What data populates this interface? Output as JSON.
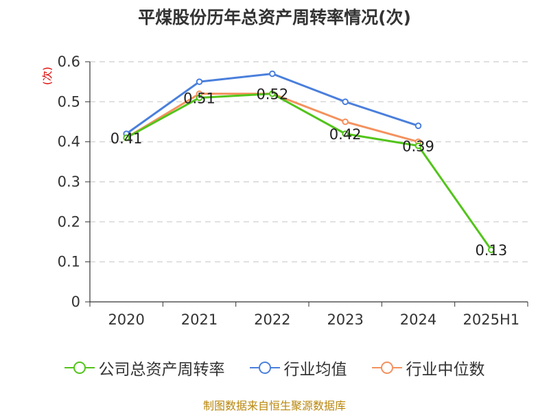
{
  "chart_data": {
    "type": "line",
    "title": "平煤股份历年总资产周转率情况(次)",
    "ylabel": "(次)",
    "source": "制图数据来自恒生聚源数据库",
    "categories": [
      "2020",
      "2021",
      "2022",
      "2023",
      "2024",
      "2025H1"
    ],
    "ylim": [
      0,
      0.6
    ],
    "yticks": [
      {
        "v": 0,
        "label": "0"
      },
      {
        "v": 0.1,
        "label": "0.1"
      },
      {
        "v": 0.2,
        "label": "0.2"
      },
      {
        "v": 0.3,
        "label": "0.3"
      },
      {
        "v": 0.4,
        "label": "0.4"
      },
      {
        "v": 0.5,
        "label": "0.5"
      },
      {
        "v": 0.6,
        "label": "0.6"
      }
    ],
    "grid": true,
    "legend_position": "bottom",
    "series": [
      {
        "name": "公司总资产周转率",
        "color": "#52c41a",
        "values": [
          0.41,
          0.51,
          0.52,
          0.42,
          0.39,
          0.13
        ],
        "labels": [
          "0.41",
          "0.51",
          "0.52",
          "0.42",
          "0.39",
          "0.13"
        ]
      },
      {
        "name": "行业均值",
        "color": "#4a7fdc",
        "values": [
          0.42,
          0.55,
          0.57,
          0.5,
          0.44,
          null
        ],
        "labels": null
      },
      {
        "name": "行业中位数",
        "color": "#f4915e",
        "values": [
          0.41,
          0.52,
          0.52,
          0.45,
          0.4,
          null
        ],
        "labels": null
      }
    ]
  }
}
